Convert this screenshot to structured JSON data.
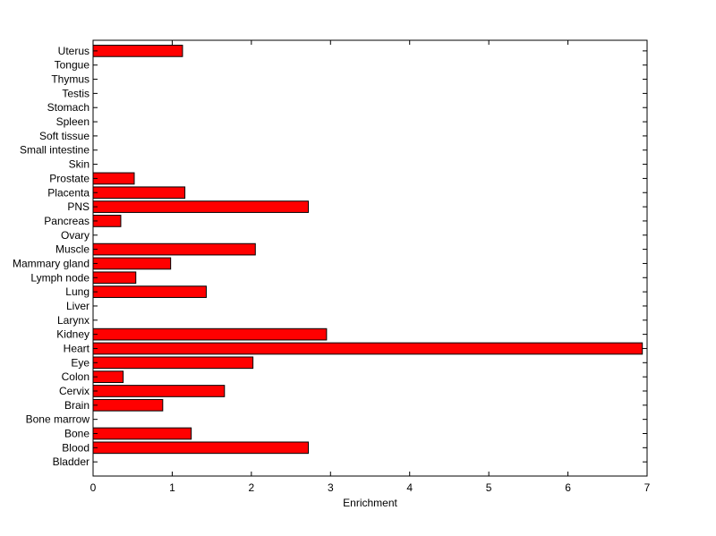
{
  "chart_data": {
    "type": "bar",
    "orientation": "horizontal",
    "title": "",
    "xlabel": "Enrichment",
    "ylabel": "",
    "xlim": [
      0,
      7
    ],
    "xticks": [
      0,
      1,
      2,
      3,
      4,
      5,
      6,
      7
    ],
    "grid": false,
    "bar_color": "#ff0000",
    "bar_edge_color": "#000000",
    "categories": [
      "Bladder",
      "Blood",
      "Bone",
      "Bone marrow",
      "Brain",
      "Cervix",
      "Colon",
      "Eye",
      "Heart",
      "Kidney",
      "Larynx",
      "Liver",
      "Lung",
      "Lymph node",
      "Mammary gland",
      "Muscle",
      "Ovary",
      "Pancreas",
      "PNS",
      "Placenta",
      "Prostate",
      "Skin",
      "Small intestine",
      "Soft tissue",
      "Spleen",
      "Stomach",
      "Testis",
      "Thymus",
      "Tongue",
      "Uterus"
    ],
    "values": [
      0,
      2.72,
      1.24,
      0,
      0.88,
      1.66,
      0.38,
      2.02,
      6.94,
      2.95,
      0,
      0,
      1.43,
      0.54,
      0.98,
      2.05,
      0,
      0.35,
      2.72,
      1.16,
      0.52,
      0,
      0,
      0,
      0,
      0,
      0,
      0,
      0,
      1.13
    ]
  }
}
